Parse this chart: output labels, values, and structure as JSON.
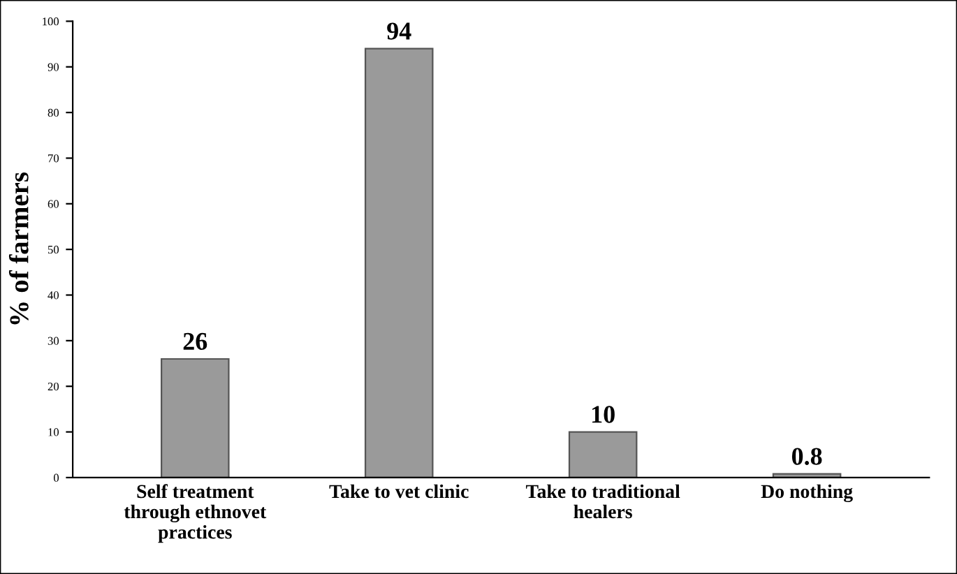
{
  "chart_data": {
    "type": "bar",
    "ylabel": "% of farmers",
    "categories": [
      "Self treatment\nthrough ethnovet\npractices",
      "Take to vet clinic",
      "Take to traditional\nhealers",
      "Do nothing"
    ],
    "values": [
      26,
      94,
      10,
      0.8
    ],
    "color": "#9a9a9a",
    "ylim": [
      0,
      100
    ],
    "yticks": [
      0,
      10,
      20,
      30,
      40,
      50,
      60,
      70,
      80,
      90,
      100
    ],
    "data_labels": true,
    "grid": false,
    "legend": false
  }
}
